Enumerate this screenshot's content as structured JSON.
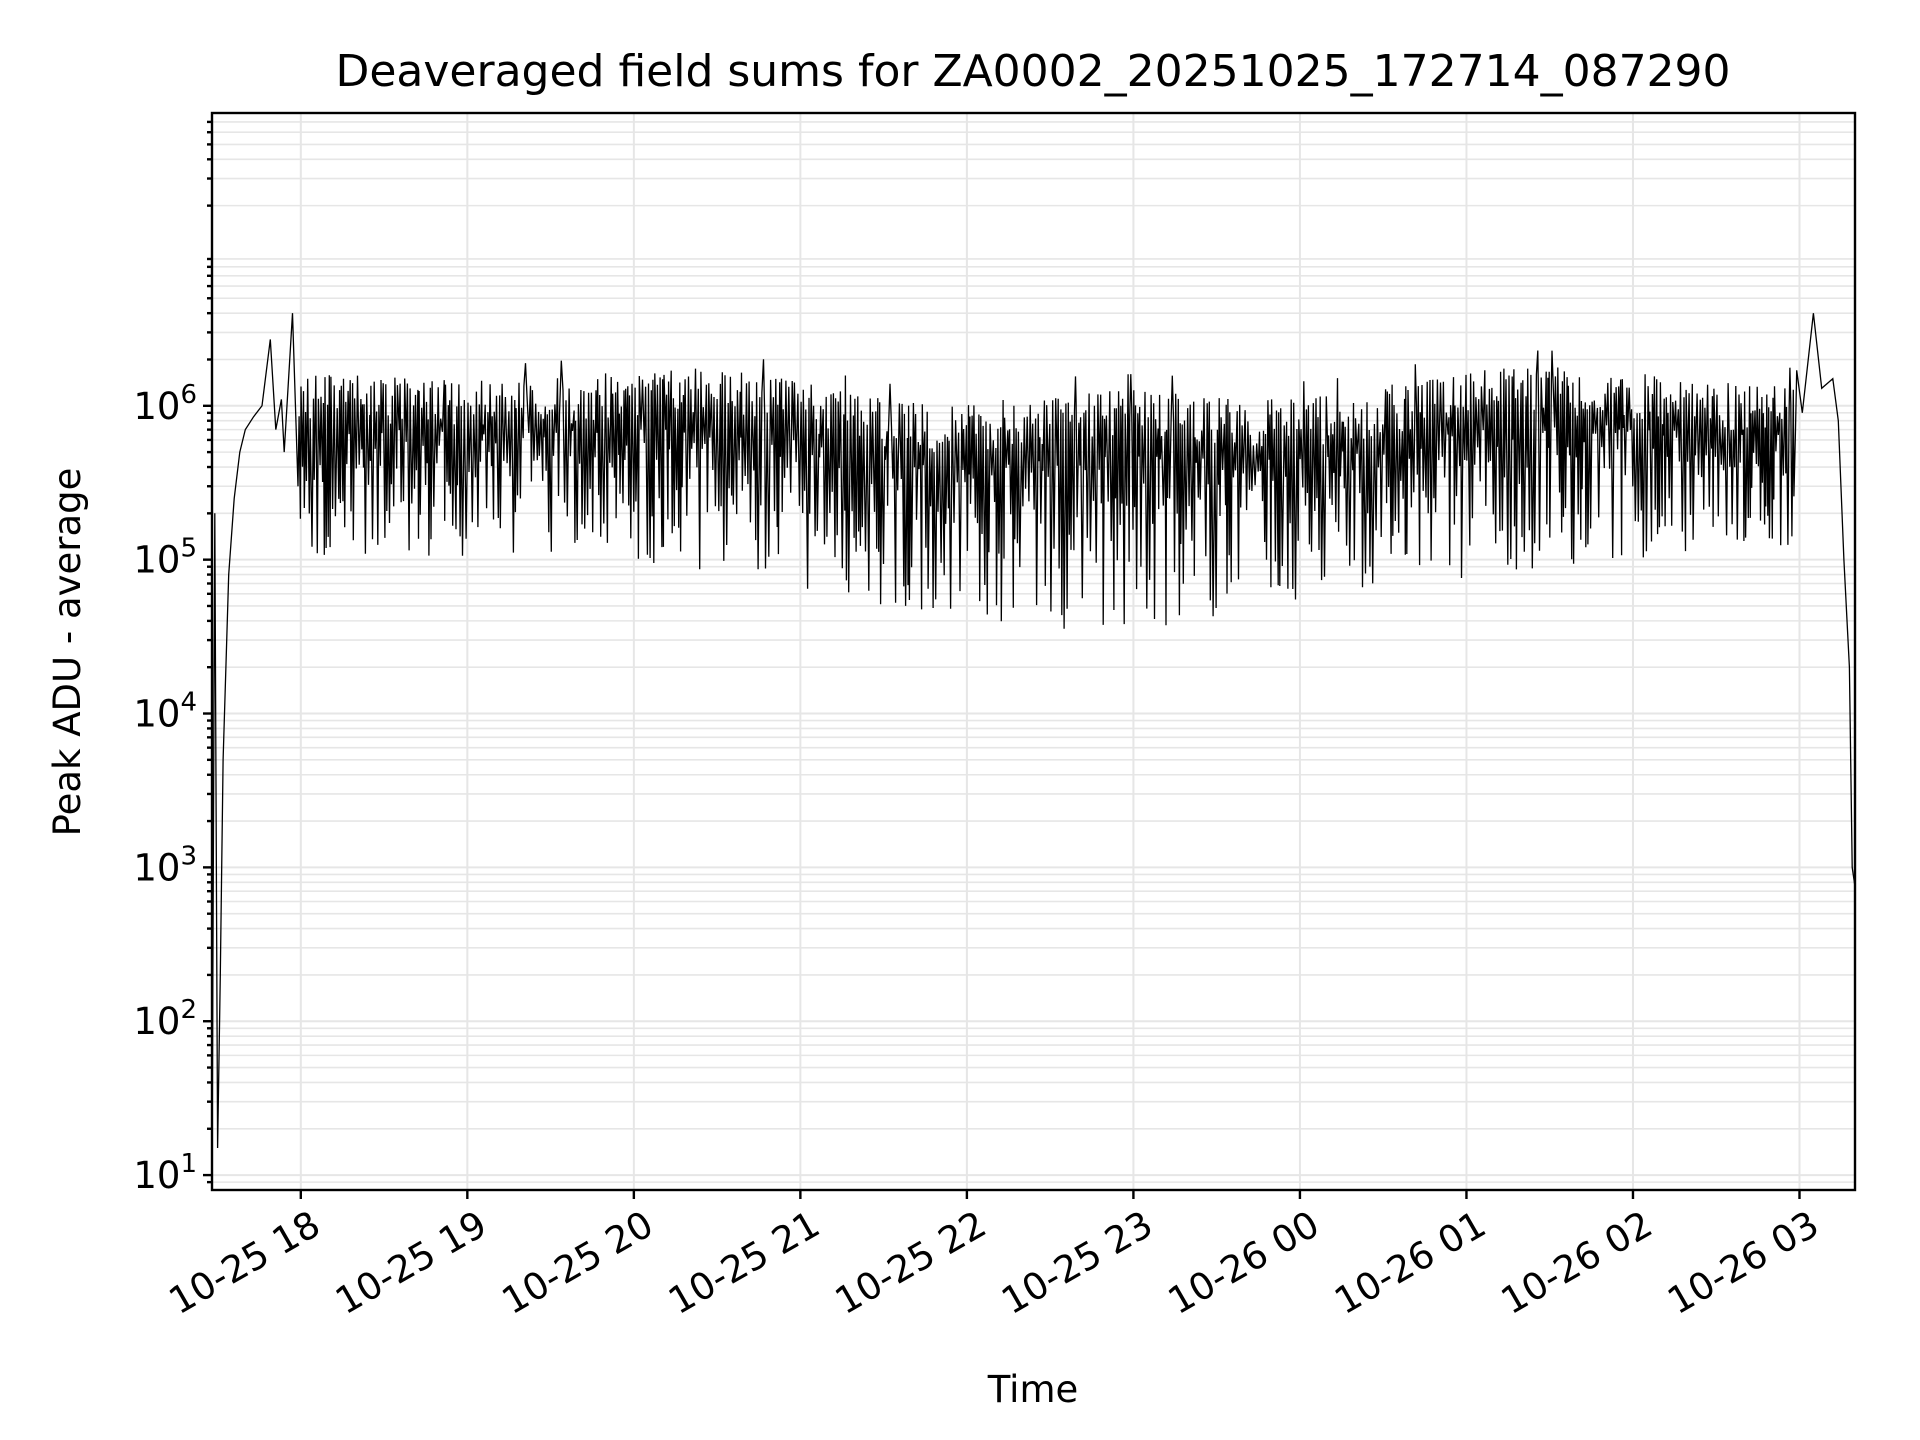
{
  "chart_data": {
    "type": "line",
    "title": "Deaveraged field sums for ZA0002_20251025_172714_087290",
    "xlabel": "Time",
    "ylabel": "Peak ADU - average",
    "yscale": "log",
    "xlim": [
      "2025-10-25T17:28",
      "2025-10-26T03:20"
    ],
    "ylim": [
      8,
      80000000
    ],
    "grid": true,
    "line_color": "#000000",
    "x_tick_labels": [
      "10-25 18",
      "10-25 19",
      "10-25 20",
      "10-25 21",
      "10-25 22",
      "10-25 23",
      "10-26 00",
      "10-26 01",
      "10-26 02",
      "10-26 03"
    ],
    "x_tick_times": [
      "2025-10-25T18:00",
      "2025-10-25T19:00",
      "2025-10-25T20:00",
      "2025-10-25T21:00",
      "2025-10-25T22:00",
      "2025-10-25T23:00",
      "2025-10-26T00:00",
      "2025-10-26T01:00",
      "2025-10-26T02:00",
      "2025-10-26T03:00"
    ],
    "y_ticks": [
      {
        "value": 10,
        "base": "10",
        "exp": "1"
      },
      {
        "value": 100,
        "base": "10",
        "exp": "2"
      },
      {
        "value": 1000,
        "base": "10",
        "exp": "3"
      },
      {
        "value": 10000,
        "base": "10",
        "exp": "4"
      },
      {
        "value": 100000,
        "base": "10",
        "exp": "5"
      },
      {
        "value": 1000000,
        "base": "10",
        "exp": "6"
      }
    ],
    "series": [
      {
        "x": [
          "2025-10-25T17:28",
          "2025-10-25T17:29",
          "2025-10-25T17:30",
          "2025-10-25T17:31",
          "2025-10-25T17:32",
          "2025-10-25T17:34",
          "2025-10-25T17:36",
          "2025-10-25T17:38",
          "2025-10-25T17:40",
          "2025-10-25T17:43",
          "2025-10-25T17:46",
          "2025-10-25T17:49",
          "2025-10-25T17:51",
          "2025-10-25T17:53",
          "2025-10-25T17:54",
          "2025-10-25T17:57",
          "2025-10-25T17:59",
          "2025-10-26T02:59",
          "2025-10-26T03:01",
          "2025-10-26T03:05",
          "2025-10-26T03:08",
          "2025-10-26T03:12",
          "2025-10-26T03:14",
          "2025-10-26T03:16",
          "2025-10-26T03:18",
          "2025-10-26T03:19",
          "2025-10-26T03:20"
        ],
        "y": [
          9,
          200000,
          15,
          200,
          5000,
          80000,
          250000,
          500000,
          700000,
          850000,
          1000000,
          2700000,
          700000,
          1100000,
          500000,
          4000000,
          300000,
          1700000,
          900000,
          4000000,
          1300000,
          1500000,
          800000,
          100000,
          20000,
          1000,
          750
        ]
      }
    ]
  }
}
